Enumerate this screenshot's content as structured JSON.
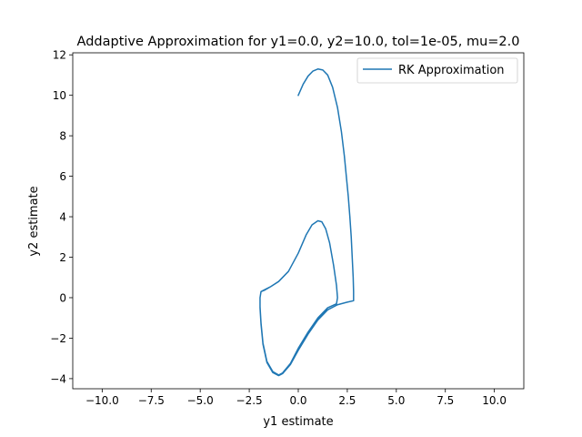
{
  "chart_data": {
    "type": "line",
    "title": "Addaptive Approximation for y1=0.0, y2=10.0, tol=1e-05, mu=2.0",
    "xlabel": "y1 estimate",
    "ylabel": "y2 estimate",
    "xlim": [
      -11.5,
      11.5
    ],
    "ylim": [
      -4.5,
      12.1
    ],
    "xticks": [
      -10.0,
      -7.5,
      -5.0,
      -2.5,
      0.0,
      2.5,
      5.0,
      7.5,
      10.0
    ],
    "xtick_labels": [
      "−10.0",
      "−7.5",
      "−5.0",
      "−2.5",
      "0.0",
      "2.5",
      "5.0",
      "7.5",
      "10.0"
    ],
    "yticks": [
      -4,
      -2,
      0,
      2,
      4,
      6,
      8,
      10,
      12
    ],
    "ytick_labels": [
      "−4",
      "−2",
      "0",
      "2",
      "4",
      "6",
      "8",
      "10",
      "12"
    ],
    "grid": false,
    "legend_position": "upper right",
    "series": [
      {
        "name": "RK Approximation",
        "color": "#1f77b4",
        "points": [
          [
            0.0,
            10.0
          ],
          [
            0.25,
            10.55
          ],
          [
            0.5,
            10.95
          ],
          [
            0.75,
            11.2
          ],
          [
            1.0,
            11.3
          ],
          [
            1.25,
            11.25
          ],
          [
            1.5,
            11.0
          ],
          [
            1.75,
            10.4
          ],
          [
            2.0,
            9.4
          ],
          [
            2.2,
            8.2
          ],
          [
            2.35,
            7.0
          ],
          [
            2.45,
            6.0
          ],
          [
            2.55,
            5.0
          ],
          [
            2.63,
            4.0
          ],
          [
            2.7,
            3.0
          ],
          [
            2.75,
            2.0
          ],
          [
            2.8,
            1.0
          ],
          [
            2.82,
            0.3
          ],
          [
            2.82,
            -0.15
          ],
          [
            2.5,
            -0.22
          ],
          [
            2.0,
            -0.35
          ],
          [
            1.5,
            -0.6
          ],
          [
            1.0,
            -1.1
          ],
          [
            0.5,
            -1.8
          ],
          [
            0.0,
            -2.6
          ],
          [
            -0.4,
            -3.3
          ],
          [
            -0.8,
            -3.75
          ],
          [
            -1.0,
            -3.85
          ],
          [
            -1.3,
            -3.7
          ],
          [
            -1.6,
            -3.2
          ],
          [
            -1.8,
            -2.3
          ],
          [
            -1.9,
            -1.3
          ],
          [
            -1.95,
            -0.5
          ],
          [
            -1.95,
            0.0
          ],
          [
            -1.9,
            0.3
          ],
          [
            -1.7,
            0.4
          ],
          [
            -1.4,
            0.55
          ],
          [
            -1.0,
            0.8
          ],
          [
            -0.5,
            1.3
          ],
          [
            0.0,
            2.2
          ],
          [
            0.4,
            3.1
          ],
          [
            0.7,
            3.6
          ],
          [
            1.0,
            3.8
          ],
          [
            1.2,
            3.75
          ],
          [
            1.4,
            3.4
          ],
          [
            1.6,
            2.7
          ],
          [
            1.8,
            1.6
          ],
          [
            1.95,
            0.6
          ],
          [
            2.0,
            0.0
          ],
          [
            1.95,
            -0.3
          ],
          [
            1.5,
            -0.5
          ],
          [
            1.0,
            -1.0
          ],
          [
            0.5,
            -1.7
          ],
          [
            0.0,
            -2.5
          ],
          [
            -0.4,
            -3.25
          ],
          [
            -0.8,
            -3.72
          ],
          [
            -1.0,
            -3.82
          ],
          [
            -1.3,
            -3.65
          ],
          [
            -1.6,
            -3.15
          ],
          [
            -1.8,
            -2.25
          ],
          [
            -1.9,
            -1.25
          ],
          [
            -1.95,
            -0.45
          ],
          [
            -1.95,
            0.0
          ],
          [
            -1.9,
            0.3
          ],
          [
            -1.7,
            0.38
          ],
          [
            -1.4,
            0.55
          ],
          [
            -1.0,
            0.8
          ],
          [
            -0.5,
            1.3
          ],
          [
            0.0,
            2.2
          ],
          [
            0.4,
            3.1
          ],
          [
            0.7,
            3.6
          ],
          [
            1.0,
            3.8
          ],
          [
            1.2,
            3.75
          ],
          [
            1.4,
            3.4
          ],
          [
            1.6,
            2.7
          ],
          [
            1.8,
            1.6
          ],
          [
            1.95,
            0.6
          ],
          [
            2.0,
            0.0
          ]
        ]
      }
    ]
  }
}
